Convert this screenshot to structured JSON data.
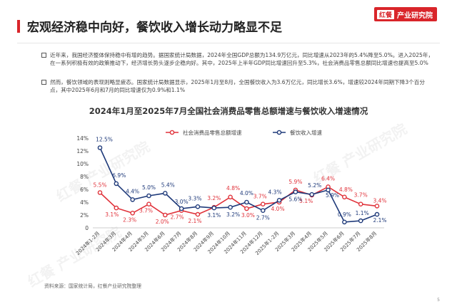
{
  "header": {
    "title": "宏观经济稳中向好，餐饮收入增长动力略显不足",
    "logo_mark": "红餐",
    "logo_text": "产业研究院"
  },
  "paragraphs": [
    "近年来，我国经济整体保持稳中有增的趋势。据国家统计局数据，2024年全国GDP总额为134.9万亿元，同比增速从2023年的5.4%降至5.0%。进入2025年，在一系列积极有效的政策推动下，经济增长势头逐步企稳向好。其中，2025年上半年GDP同比增速回升至5.3%，社会消费品零售总额同比增速也提高至5.0%",
    "然而，餐饮领域的表现则略显疲态。国家统计局数据显示，2025年1月至8月，全国餐饮收入为3.6万亿元，同比增长3.6%，增速较2024年同期下降3个百分点，其中2025年6月和7月的同比增速仅为0.9%和1.1%"
  ],
  "source": "资料来源：国家统计局，红餐产业研究院整理",
  "page_number": "5",
  "watermark_text": "红餐 产业研究院",
  "chart_data": {
    "type": "line",
    "title": "2024年1月至2025年7月全国社会消费品零售总额增速与餐饮收入增速情况",
    "categories": [
      "2024年1-2月",
      "2024年3月",
      "2024年4月",
      "2024年5月",
      "2024年6月",
      "2024年7月",
      "2024年8月",
      "2024年9月",
      "2024年10月",
      "2024年11月",
      "2024年12月",
      "2025年1-2月",
      "2025年3月",
      "2025年4月",
      "2025年5月",
      "2025年6月",
      "2025年7月",
      "2025年8月"
    ],
    "series": [
      {
        "name": "社会消费品零售总额增速",
        "color": "#e0323a",
        "values": [
          5.5,
          3.1,
          2.3,
          3.7,
          2.0,
          2.7,
          2.1,
          3.2,
          4.8,
          3.0,
          3.7,
          4.0,
          5.9,
          5.1,
          6.4,
          4.8,
          3.7,
          3.4
        ],
        "labels": [
          "5.5%",
          "3.1%",
          "2.3%",
          "3.7%",
          "2.0%",
          "2.7%",
          "2.1%",
          "3.2%",
          "4.8%",
          "3.0%",
          "3.7%",
          "4.0%",
          "5.9%",
          "5.1%",
          "6.4%",
          "4.8%",
          "3.7%",
          "3.4%"
        ]
      },
      {
        "name": "餐饮收入增速",
        "color": "#1f3a7a",
        "values": [
          12.5,
          6.9,
          4.4,
          5.0,
          5.4,
          3.0,
          3.3,
          3.1,
          3.2,
          4.0,
          2.7,
          4.3,
          5.6,
          5.2,
          5.9,
          0.9,
          1.1,
          2.1
        ],
        "labels": [
          "12.5%",
          "6.9%",
          "4.4%",
          "5.0%",
          "5.4%",
          "3.0%",
          "3.3%",
          "3.1%",
          "3.2%",
          "4.0%",
          "2.7%",
          "4.3%",
          "5.6%",
          "5.2%",
          "5.9%",
          "0.9%",
          "1.1%",
          "2.1%"
        ]
      }
    ],
    "yticks": [
      "0",
      "2%",
      "4%",
      "6%",
      "8%",
      "10%",
      "12%",
      "14%"
    ],
    "ylim": [
      0,
      14
    ],
    "legend_position": "top-left",
    "grid": false
  }
}
